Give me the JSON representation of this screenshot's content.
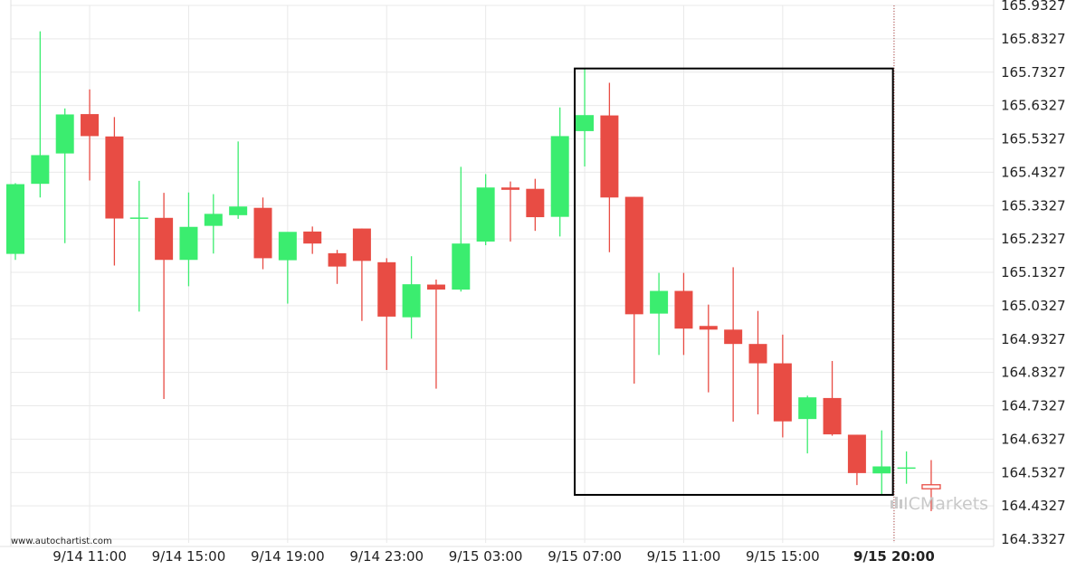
{
  "chart_data": {
    "type": "candlestick",
    "title": "",
    "source_credit": "www.autochartist.com",
    "watermark": "ICMarkets",
    "colors": {
      "up": "#3bed6f",
      "down": "#e84c44",
      "grid": "#e9e9e9",
      "box": "#000000",
      "current_line": "#b04040"
    },
    "ylim": [
      164.3327,
      165.9327
    ],
    "y_ticks": [
      "165.9327",
      "165.8327",
      "165.7327",
      "165.6327",
      "165.5327",
      "165.4327",
      "165.3327",
      "165.2327",
      "165.1327",
      "165.0327",
      "164.9327",
      "164.8327",
      "164.7327",
      "164.6327",
      "164.5327",
      "164.4327",
      "164.3327"
    ],
    "x_ticks": [
      {
        "label": "9/14 11:00",
        "index": 3
      },
      {
        "label": "9/14 15:00",
        "index": 7
      },
      {
        "label": "9/14 19:00",
        "index": 11
      },
      {
        "label": "9/14 23:00",
        "index": 15
      },
      {
        "label": "9/15 03:00",
        "index": 19
      },
      {
        "label": "9/15 07:00",
        "index": 23
      },
      {
        "label": "9/15 11:00",
        "index": 27
      },
      {
        "label": "9/15 15:00",
        "index": 31
      },
      {
        "label": "9/15 20:00",
        "index": 35.5,
        "bold": true
      }
    ],
    "candles": [
      {
        "o": 165.188,
        "h": 165.4,
        "l": 165.17,
        "c": 165.397
      },
      {
        "o": 165.398,
        "h": 165.855,
        "l": 165.357,
        "c": 165.484
      },
      {
        "o": 165.489,
        "h": 165.624,
        "l": 165.22,
        "c": 165.606
      },
      {
        "o": 165.607,
        "h": 165.681,
        "l": 165.408,
        "c": 165.541
      },
      {
        "o": 165.54,
        "h": 165.598,
        "l": 165.153,
        "c": 165.294
      },
      {
        "o": 165.294,
        "h": 165.407,
        "l": 165.015,
        "c": 165.297
      },
      {
        "o": 165.296,
        "h": 165.371,
        "l": 164.753,
        "c": 165.17
      },
      {
        "o": 165.17,
        "h": 165.372,
        "l": 165.091,
        "c": 165.269
      },
      {
        "o": 165.272,
        "h": 165.367,
        "l": 165.189,
        "c": 165.308
      },
      {
        "o": 165.304,
        "h": 165.525,
        "l": 165.293,
        "c": 165.33
      },
      {
        "o": 165.326,
        "h": 165.357,
        "l": 165.142,
        "c": 165.175
      },
      {
        "o": 165.169,
        "h": 165.253,
        "l": 165.039,
        "c": 165.254
      },
      {
        "o": 165.255,
        "h": 165.27,
        "l": 165.188,
        "c": 165.219
      },
      {
        "o": 165.19,
        "h": 165.2,
        "l": 165.098,
        "c": 165.15
      },
      {
        "o": 165.264,
        "h": 165.264,
        "l": 164.987,
        "c": 165.167
      },
      {
        "o": 165.163,
        "h": 165.175,
        "l": 164.84,
        "c": 165.0
      },
      {
        "o": 164.998,
        "h": 165.181,
        "l": 164.934,
        "c": 165.097
      },
      {
        "o": 165.096,
        "h": 165.111,
        "l": 164.784,
        "c": 165.081
      },
      {
        "o": 165.081,
        "h": 165.449,
        "l": 165.075,
        "c": 165.219
      },
      {
        "o": 165.225,
        "h": 165.427,
        "l": 165.214,
        "c": 165.387
      },
      {
        "o": 165.387,
        "h": 165.405,
        "l": 165.225,
        "c": 165.38
      },
      {
        "o": 165.383,
        "h": 165.413,
        "l": 165.257,
        "c": 165.298
      },
      {
        "o": 165.299,
        "h": 165.627,
        "l": 165.24,
        "c": 165.541
      },
      {
        "o": 165.556,
        "h": 165.742,
        "l": 165.45,
        "c": 165.604
      },
      {
        "o": 165.603,
        "h": 165.701,
        "l": 165.193,
        "c": 165.357
      },
      {
        "o": 165.359,
        "h": 165.359,
        "l": 164.799,
        "c": 165.007
      },
      {
        "o": 165.009,
        "h": 165.131,
        "l": 164.885,
        "c": 165.077
      },
      {
        "o": 165.077,
        "h": 165.131,
        "l": 164.885,
        "c": 164.964
      },
      {
        "o": 164.972,
        "h": 165.036,
        "l": 164.773,
        "c": 164.961
      },
      {
        "o": 164.961,
        "h": 165.148,
        "l": 164.685,
        "c": 164.918
      },
      {
        "o": 164.918,
        "h": 165.017,
        "l": 164.707,
        "c": 164.86
      },
      {
        "o": 164.86,
        "h": 164.946,
        "l": 164.638,
        "c": 164.686
      },
      {
        "o": 164.693,
        "h": 164.763,
        "l": 164.59,
        "c": 164.758
      },
      {
        "o": 164.756,
        "h": 164.867,
        "l": 164.643,
        "c": 164.647
      },
      {
        "o": 164.646,
        "h": 164.646,
        "l": 164.495,
        "c": 164.531
      },
      {
        "o": 164.53,
        "h": 164.659,
        "l": 164.465,
        "c": 164.551
      },
      {
        "o": 164.548,
        "h": 164.596,
        "l": 164.499,
        "c": 164.548
      },
      {
        "o": 164.496,
        "h": 164.57,
        "l": 164.417,
        "c": 164.484
      }
    ],
    "pattern_box": {
      "start_index": 23,
      "end_index": 35.6,
      "top": 165.7437,
      "bottom": 164.4657
    },
    "current_line_index": 35.5,
    "grid": true
  }
}
